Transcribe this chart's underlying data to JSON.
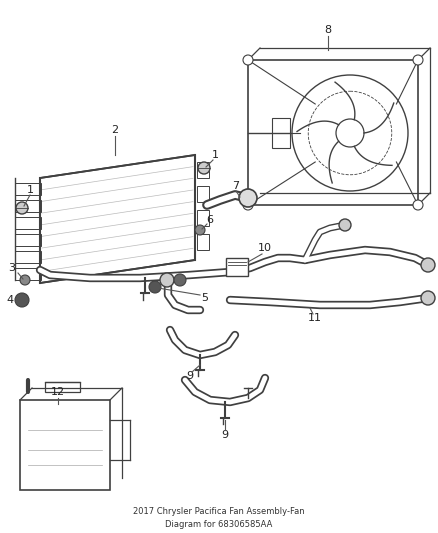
{
  "title": "2017 Chrysler Pacifica Fan Assembly-Fan\nDiagram for 68306585AA",
  "bg_color": "#ffffff",
  "lc": "#404040",
  "lc2": "#666666",
  "fig_width": 4.38,
  "fig_height": 5.33,
  "dpi": 100
}
